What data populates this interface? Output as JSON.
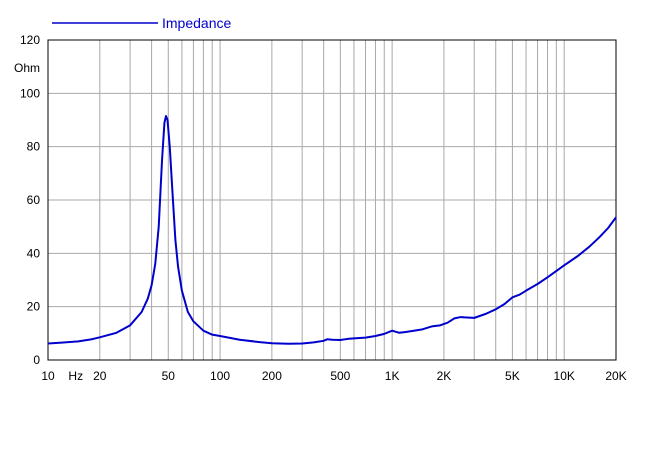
{
  "chart_data": {
    "type": "line",
    "title": "",
    "xlabel": "",
    "ylabel": "",
    "x_unit_label": "Hz",
    "y_unit_label": "Ohm",
    "x_scale": "log",
    "xlim": [
      10,
      20000
    ],
    "ylim": [
      0,
      120
    ],
    "grid": true,
    "legend_position": "top-left",
    "x_tick_labels": [
      {
        "value": 10,
        "label": "10"
      },
      {
        "value": 20,
        "label": "20"
      },
      {
        "value": 50,
        "label": "50"
      },
      {
        "value": 100,
        "label": "100"
      },
      {
        "value": 200,
        "label": "200"
      },
      {
        "value": 500,
        "label": "500"
      },
      {
        "value": 1000,
        "label": "1K"
      },
      {
        "value": 2000,
        "label": "2K"
      },
      {
        "value": 5000,
        "label": "5K"
      },
      {
        "value": 10000,
        "label": "10K"
      },
      {
        "value": 20000,
        "label": "20K"
      }
    ],
    "y_tick_labels": [
      {
        "value": 0,
        "label": "0"
      },
      {
        "value": 20,
        "label": "20"
      },
      {
        "value": 40,
        "label": "40"
      },
      {
        "value": 60,
        "label": "60"
      },
      {
        "value": 80,
        "label": "80"
      },
      {
        "value": 100,
        "label": "100"
      },
      {
        "value": 120,
        "label": "120"
      }
    ],
    "series": [
      {
        "name": "Impedance",
        "color": "#0000cc",
        "points": [
          [
            10,
            6.2
          ],
          [
            12,
            6.5
          ],
          [
            15,
            7.0
          ],
          [
            18,
            7.8
          ],
          [
            20,
            8.5
          ],
          [
            25,
            10.2
          ],
          [
            30,
            13.0
          ],
          [
            35,
            18.0
          ],
          [
            38,
            23.0
          ],
          [
            40,
            28.0
          ],
          [
            42,
            36.0
          ],
          [
            44,
            50.0
          ],
          [
            46,
            75.0
          ],
          [
            47.5,
            89.0
          ],
          [
            48.5,
            91.5
          ],
          [
            49.5,
            90.0
          ],
          [
            51,
            80.0
          ],
          [
            53,
            62.0
          ],
          [
            55,
            45.0
          ],
          [
            57,
            35.0
          ],
          [
            60,
            26.0
          ],
          [
            65,
            18.0
          ],
          [
            70,
            14.5
          ],
          [
            80,
            11.0
          ],
          [
            90,
            9.5
          ],
          [
            100,
            9.0
          ],
          [
            130,
            7.6
          ],
          [
            170,
            6.7
          ],
          [
            200,
            6.3
          ],
          [
            250,
            6.1
          ],
          [
            300,
            6.2
          ],
          [
            350,
            6.6
          ],
          [
            400,
            7.2
          ],
          [
            420,
            7.8
          ],
          [
            450,
            7.6
          ],
          [
            500,
            7.5
          ],
          [
            550,
            7.9
          ],
          [
            600,
            8.1
          ],
          [
            700,
            8.4
          ],
          [
            800,
            9.0
          ],
          [
            900,
            9.8
          ],
          [
            1000,
            11.0
          ],
          [
            1100,
            10.2
          ],
          [
            1200,
            10.5
          ],
          [
            1500,
            11.5
          ],
          [
            1700,
            12.6
          ],
          [
            1900,
            13.0
          ],
          [
            2100,
            14.0
          ],
          [
            2300,
            15.6
          ],
          [
            2500,
            16.1
          ],
          [
            2800,
            15.9
          ],
          [
            3000,
            15.8
          ],
          [
            3500,
            17.3
          ],
          [
            4000,
            19.0
          ],
          [
            4500,
            21.0
          ],
          [
            5000,
            23.5
          ],
          [
            5500,
            24.5
          ],
          [
            6000,
            26.0
          ],
          [
            7000,
            28.5
          ],
          [
            8000,
            31.0
          ],
          [
            10000,
            35.5
          ],
          [
            12000,
            39.0
          ],
          [
            14000,
            42.5
          ],
          [
            16000,
            46.0
          ],
          [
            18000,
            49.5
          ],
          [
            20000,
            53.5
          ]
        ]
      }
    ]
  }
}
